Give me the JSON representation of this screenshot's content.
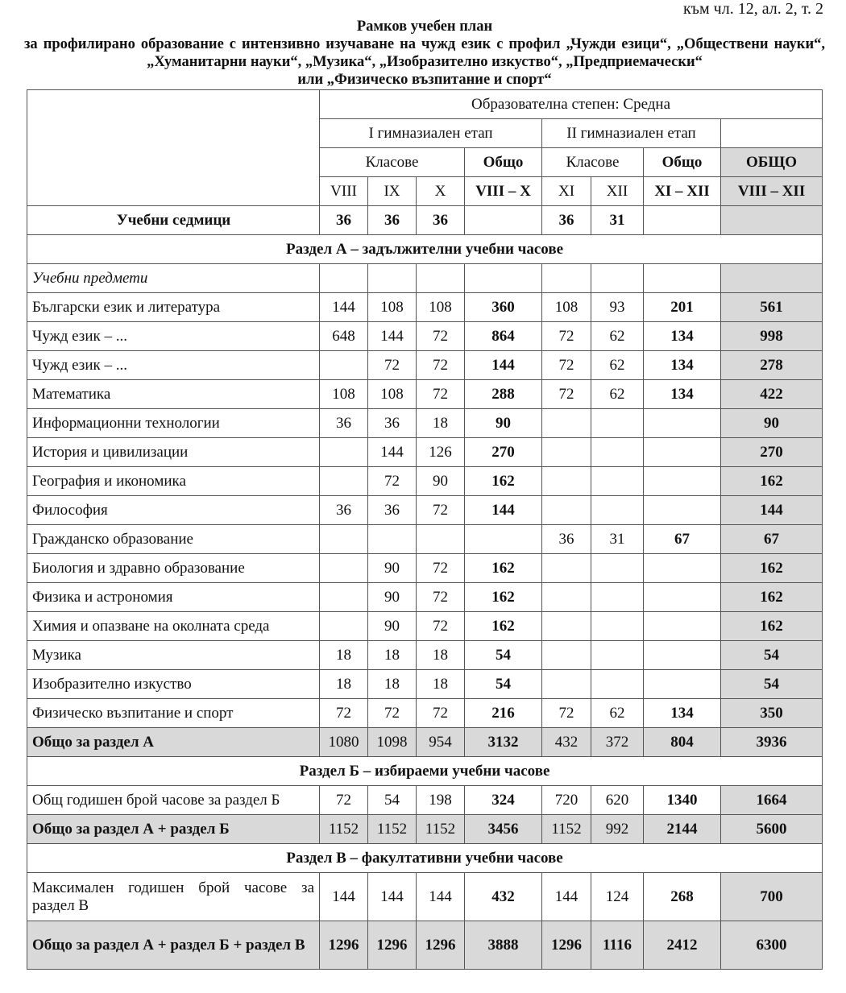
{
  "reference": "към чл. 12, ал. 2, т. 2",
  "title": "Рамков учебен план",
  "subtitle": "за профилирано образование с интензивно изучаване на чужд език с профил „Чужди езици“, „Обществени науки“, „Хуманитарни науки“, „Музика“, „Изобразително изкуство“, „Предприемачески“",
  "subtitle_line3": "или „Физическо възпитание и спорт“",
  "header": {
    "degree": "Образователна степен: Средна",
    "stage1": "I гимназиален етап",
    "stage2": "II гимназиален етап",
    "classes1": "Класове",
    "total1": "Общо",
    "classes2": "Класове",
    "total2": "Общо",
    "grand_total": "ОБЩО",
    "cols": [
      "VIII",
      "IX",
      "X",
      "VIII – X",
      "XI",
      "XII",
      "XI – XII",
      "VIII – XII"
    ]
  },
  "weeks": {
    "label": "Учебни седмици",
    "values": [
      "36",
      "36",
      "36",
      "",
      "36",
      "31",
      "",
      ""
    ]
  },
  "sections": {
    "a": "Раздел А – задължителни учебни часове",
    "b": "Раздел  Б – избираеми учебни часове",
    "c": "Раздел В – факултативни учебни часове"
  },
  "subjects_label": "Учебни предмети",
  "subjects": [
    {
      "name": "Български език и литература",
      "values": [
        "144",
        "108",
        "108",
        "360",
        "108",
        "93",
        "201",
        "561"
      ]
    },
    {
      "name": "Чужд език – ...",
      "values": [
        "648",
        "144",
        "72",
        "864",
        "72",
        "62",
        "134",
        "998"
      ]
    },
    {
      "name": "Чужд език – ...",
      "values": [
        "",
        "72",
        "72",
        "144",
        "72",
        "62",
        "134",
        "278"
      ]
    },
    {
      "name": "Математика",
      "values": [
        "108",
        "108",
        "72",
        "288",
        "72",
        "62",
        "134",
        "422"
      ]
    },
    {
      "name": "Информационни технологии",
      "values": [
        "36",
        "36",
        "18",
        "90",
        "",
        "",
        "",
        "90"
      ]
    },
    {
      "name": "История и цивилизации",
      "values": [
        "",
        "144",
        "126",
        "270",
        "",
        "",
        "",
        "270"
      ]
    },
    {
      "name": "География и икономика",
      "values": [
        "",
        "72",
        "90",
        "162",
        "",
        "",
        "",
        "162"
      ]
    },
    {
      "name": "Философия",
      "values": [
        "36",
        "36",
        "72",
        "144",
        "",
        "",
        "",
        "144"
      ]
    },
    {
      "name": "Гражданско образование",
      "values": [
        "",
        "",
        "",
        "",
        "36",
        "31",
        "67",
        "67"
      ]
    },
    {
      "name": "Биология и здравно образование",
      "values": [
        "",
        "90",
        "72",
        "162",
        "",
        "",
        "",
        "162"
      ]
    },
    {
      "name": "Физика и астрономия",
      "values": [
        "",
        "90",
        "72",
        "162",
        "",
        "",
        "",
        "162"
      ]
    },
    {
      "name": "Химия и опазване на околната среда",
      "values": [
        "",
        "90",
        "72",
        "162",
        "",
        "",
        "",
        "162"
      ]
    },
    {
      "name": "Музика",
      "values": [
        "18",
        "18",
        "18",
        "54",
        "",
        "",
        "",
        "54"
      ]
    },
    {
      "name": "Изобразително изкуство",
      "values": [
        "18",
        "18",
        "18",
        "54",
        "",
        "",
        "",
        "54"
      ]
    },
    {
      "name": "Физическо възпитание и спорт",
      "values": [
        "72",
        "72",
        "72",
        "216",
        "72",
        "62",
        "134",
        "350"
      ]
    }
  ],
  "total_a": {
    "label": "Общо за раздел А",
    "values": [
      "1080",
      "1098",
      "954",
      "3132",
      "432",
      "372",
      "804",
      "3936"
    ]
  },
  "row_b": {
    "label": "Общ годишен брой часове за раздел Б",
    "values": [
      "72",
      "54",
      "198",
      "324",
      "720",
      "620",
      "1340",
      "1664"
    ]
  },
  "total_ab": {
    "label": "Общо за раздел А + раздел Б",
    "values": [
      "1152",
      "1152",
      "1152",
      "3456",
      "1152",
      "992",
      "2144",
      "5600"
    ]
  },
  "row_c": {
    "label": "Максимален годишен брой часове за раздел В",
    "values": [
      "144",
      "144",
      "144",
      "432",
      "144",
      "124",
      "268",
      "700"
    ]
  },
  "total_abc": {
    "label": "Общо за раздел А + раздел Б + раздел В",
    "values": [
      "1296",
      "1296",
      "1296",
      "3888",
      "1296",
      "1116",
      "2412",
      "6300"
    ]
  },
  "colors": {
    "shade": "#d9d9d9",
    "border": "#555555"
  }
}
